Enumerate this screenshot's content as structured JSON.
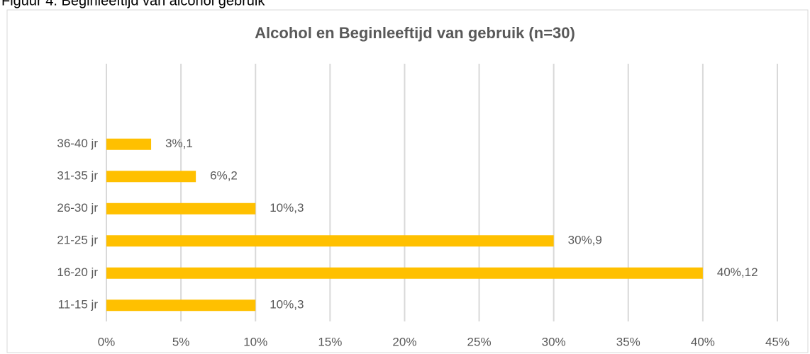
{
  "caption": "Figuur 4. Beginleeftijd van alcohol gebruik",
  "chart_data": {
    "type": "barh",
    "title": "Alcohol  en Beginleeftijd van gebruik (n=30)",
    "categories": [
      "11-15 jr",
      "16-20 jr",
      "21-25 jr",
      "26-30 jr",
      "31-35 jr",
      "36-40 jr"
    ],
    "values": [
      10,
      40,
      30,
      10,
      6,
      3
    ],
    "value_labels": [
      "10%,3",
      "40%,12",
      "30%,9",
      "10%,3",
      "6%,2",
      "3%,1"
    ],
    "color": "#ffc000",
    "xlim": [
      0,
      45
    ],
    "xticks": [
      {
        "value": 0,
        "label": "0%"
      },
      {
        "value": 5,
        "label": "5%"
      },
      {
        "value": 10,
        "label": "10%"
      },
      {
        "value": 15,
        "label": "15%"
      },
      {
        "value": 20,
        "label": "20%"
      },
      {
        "value": 25,
        "label": "25%"
      },
      {
        "value": 30,
        "label": "30%"
      },
      {
        "value": 35,
        "label": "35%"
      },
      {
        "value": 40,
        "label": "40%"
      },
      {
        "value": 45,
        "label": "45%"
      }
    ],
    "grid": true
  }
}
